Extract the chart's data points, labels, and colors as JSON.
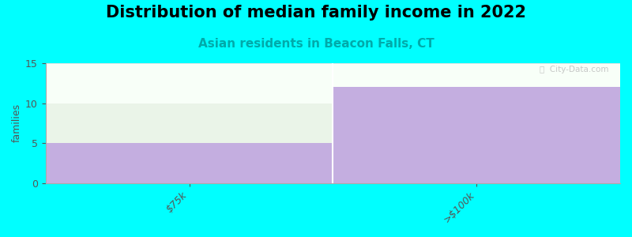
{
  "title": "Distribution of median family income in 2022",
  "subtitle": "Asian residents in Beacon Falls, CT",
  "categories": [
    "$75k",
    ">$100k"
  ],
  "purple_values": [
    5,
    12
  ],
  "green_values": [
    5,
    0
  ],
  "purple_color": "#c4aee0",
  "green_color": "#eaf4e8",
  "background_color": "#00ffff",
  "plot_bg_color": "#f8fff8",
  "ylabel": "families",
  "ylim": [
    0,
    15
  ],
  "yticks": [
    0,
    5,
    10,
    15
  ],
  "title_fontsize": 15,
  "subtitle_fontsize": 11,
  "watermark": "ⓘ  City-Data.com"
}
